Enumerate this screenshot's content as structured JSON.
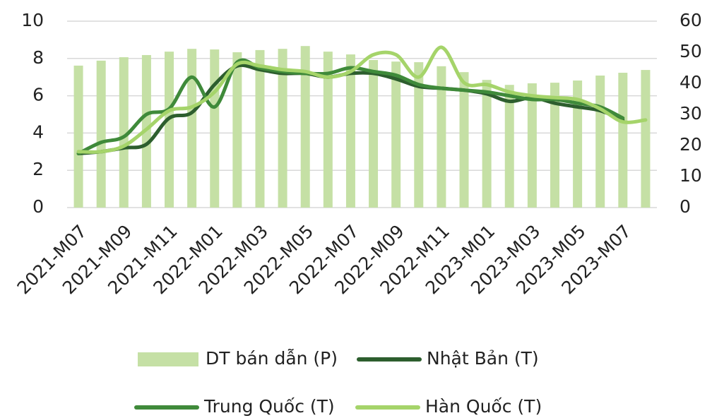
{
  "chart_data": {
    "type": "bar",
    "categories": [
      "2021-M07",
      null,
      "2021-M09",
      null,
      "2021-M11",
      null,
      "2022-M01",
      null,
      "2022-M03",
      null,
      "2022-M05",
      null,
      "2022-M07",
      null,
      "2022-M09",
      null,
      "2022-M11",
      null,
      "2023-M01",
      null,
      "2023-M03",
      null,
      "2023-M05",
      null,
      "2023-M07",
      null
    ],
    "ylim": [
      0,
      10
    ],
    "yticks": [
      0,
      2,
      4,
      6,
      8,
      10
    ],
    "y2lim": [
      0,
      60
    ],
    "y2ticks": [
      0,
      10,
      20,
      30,
      40,
      50,
      60
    ],
    "grid": true,
    "series": [
      {
        "name": "DT bán dẫn (P)",
        "type": "bar",
        "axis": "y2",
        "color": "#c5e0a5",
        "values": [
          45.7,
          47.3,
          48.4,
          49.1,
          50.2,
          51.1,
          50.9,
          50,
          50.7,
          51.1,
          52,
          50.2,
          49.3,
          47.5,
          47,
          46.8,
          45.5,
          43.6,
          41.1,
          39.5,
          40,
          40.2,
          40.9,
          42.5,
          43.4,
          44.3
        ]
      },
      {
        "name": "Nhật Bản (T)",
        "type": "line",
        "color": "#2d5e2e",
        "values": [
          2.9,
          3.0,
          3.2,
          3.4,
          4.8,
          5.1,
          6.6,
          7.6,
          7.4,
          7.2,
          7.2,
          7.0,
          7.2,
          7.2,
          6.9,
          6.5,
          6.4,
          6.3,
          6.1,
          5.7,
          5.9,
          5.6,
          5.4,
          5.2,
          4.7,
          null
        ]
      },
      {
        "name": "Trung Quốc (T)",
        "type": "line",
        "color": "#3f8a3a",
        "values": [
          2.9,
          3.5,
          3.8,
          5.0,
          5.3,
          7.0,
          5.4,
          7.8,
          7.5,
          7.3,
          7.2,
          7.2,
          7.5,
          7.3,
          7.1,
          6.6,
          6.4,
          6.3,
          6.2,
          6.0,
          5.8,
          5.8,
          5.6,
          5.4,
          4.8,
          null
        ]
      },
      {
        "name": "Hàn Quốc (T)",
        "type": "line",
        "color": "#a5d46a",
        "values": [
          3.0,
          3.0,
          3.3,
          4.2,
          5.2,
          5.4,
          6.2,
          7.7,
          7.6,
          7.4,
          7.3,
          7.0,
          7.3,
          8.2,
          8.2,
          7.0,
          8.6,
          6.7,
          6.6,
          6.2,
          6.0,
          5.9,
          5.8,
          5.3,
          4.6,
          4.7
        ]
      }
    ]
  }
}
